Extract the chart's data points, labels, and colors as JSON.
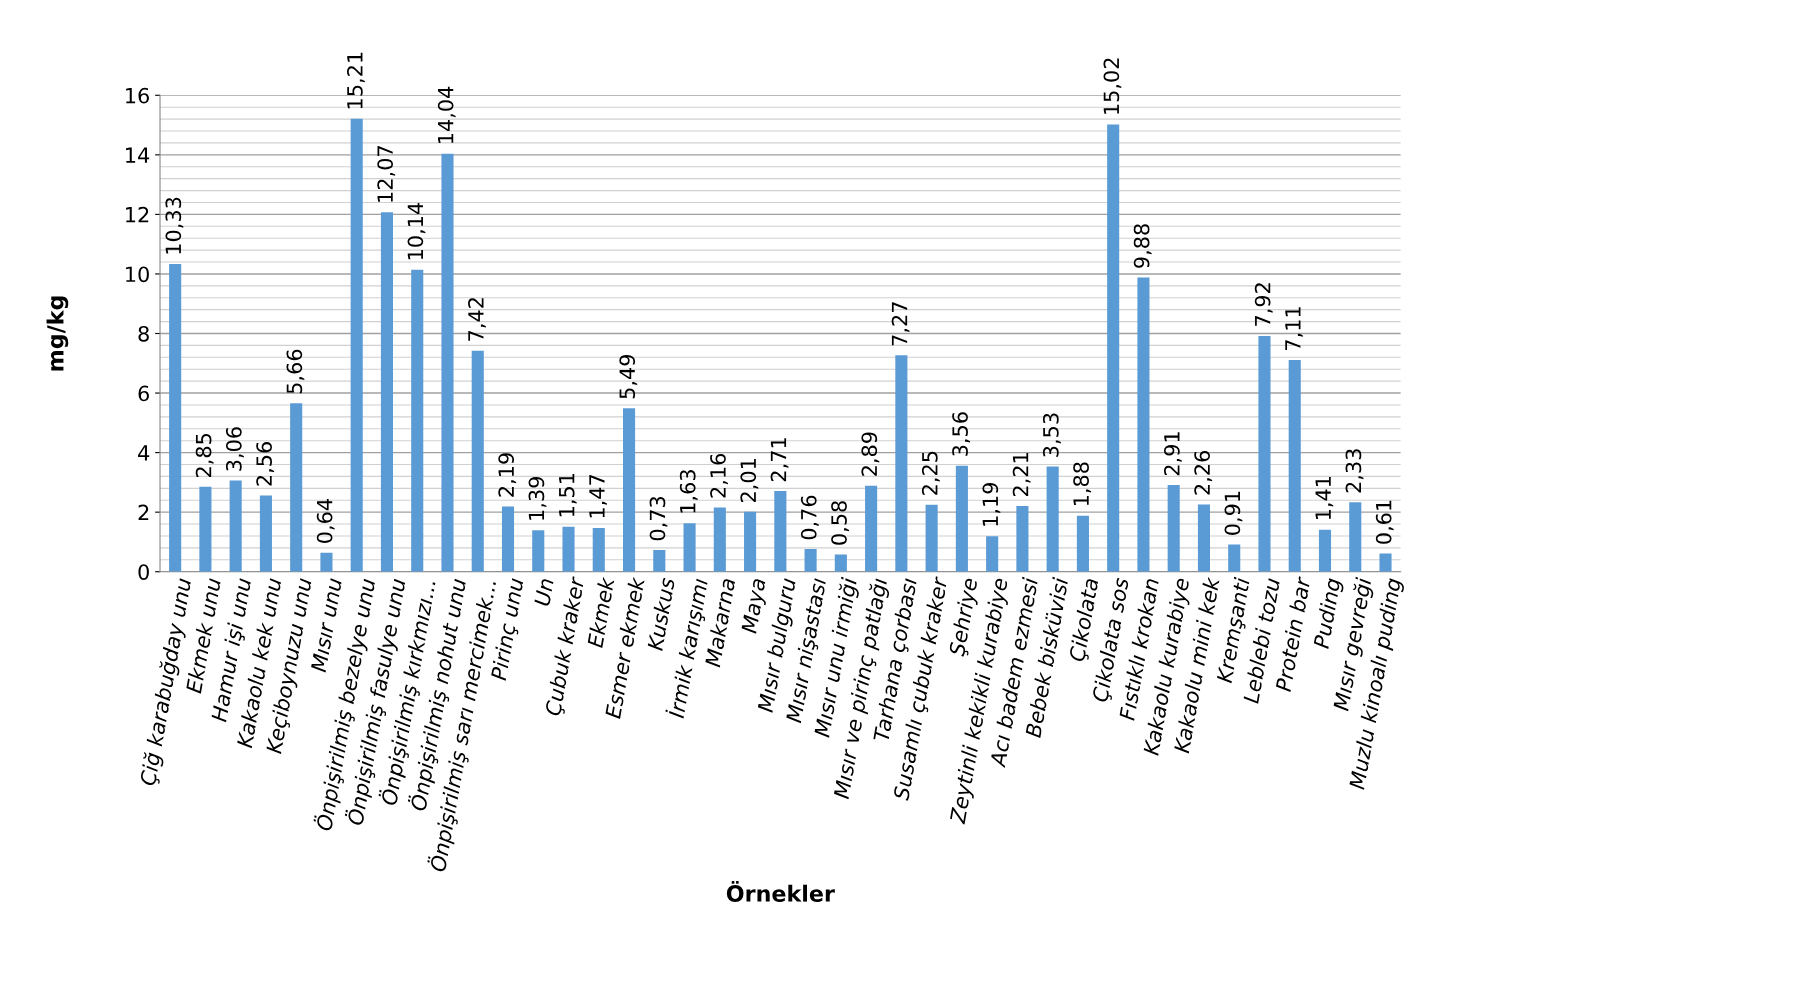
{
  "chart_data": {
    "type": "bar",
    "xlabel": "Örnekler",
    "ylabel": "mg/kg",
    "categories": [
      "Çiğ karabuğday unu",
      "Ekmek unu",
      "Hamur işi unu",
      "Kakaolu kek unu",
      "Keçiboynuzu unu",
      "Mısır unu",
      "Önpişirilmiş bezelye unu",
      "Önpişirilmiş fasulye unu",
      "Önpişirilmiş kırkmızı...",
      "Önpişirilmiş nohut unu",
      "Önpişirilmiş sarı mercimek...",
      "Pirinç unu",
      "Un",
      "Çubuk kraker",
      "Ekmek",
      "Esmer ekmek",
      "Kuskus",
      "İrmik karışımı",
      "Makarna",
      "Maya",
      "Mısır bulguru",
      "Mısır nişastası",
      "Mısır unu irmiği",
      "Mısır ve pirinç patlağı",
      "Tarhana çorbası",
      "Susamlı çubuk kraker",
      "Şehriye",
      "Zeytinli kekikli kurabiye",
      "Acı badem ezmesi",
      "Bebek bisküvisi",
      "Çikolata",
      "Çikolata sos",
      "Fıstıklı krokan",
      "Kakaolu kurabiye",
      "Kakaolu mini kek",
      "Kremşanti",
      "Leblebi tozu",
      "Protein bar",
      "Puding",
      "Mısır gevreği",
      "Muzlu kinoalı puding"
    ],
    "values": [
      10.33,
      2.85,
      3.06,
      2.56,
      5.66,
      0.64,
      15.21,
      12.07,
      10.14,
      14.04,
      7.42,
      2.19,
      1.39,
      1.51,
      1.47,
      5.49,
      0.73,
      1.63,
      2.16,
      2.01,
      2.71,
      0.76,
      0.58,
      2.89,
      7.27,
      2.25,
      3.56,
      1.19,
      2.21,
      3.53,
      1.88,
      15.02,
      9.88,
      2.91,
      2.26,
      0.91,
      7.92,
      7.11,
      1.41,
      2.33,
      0.61
    ],
    "value_labels": [
      "10,33",
      "2,85",
      "3,06",
      "2,56",
      "5,66",
      "0,64",
      "15,21",
      "12,07",
      "10,14",
      "14,04",
      "7,42",
      "2,19",
      "1,39",
      "1,51",
      "1,47",
      "5,49",
      "0,73",
      "1,63",
      "2,16",
      "2,01",
      "2,71",
      "0,76",
      "0,58",
      "2,89",
      "7,27",
      "2,25",
      "3,56",
      "1,19",
      "2,21",
      "3,53",
      "1,88",
      "15,02",
      "9,88",
      "2,91",
      "2,26",
      "0,91",
      "7,92",
      "7,11",
      "1,41",
      "2,33",
      "0,61"
    ],
    "color": "#5b9bd5",
    "ylim": [
      0,
      16
    ],
    "yticks": [
      0,
      2,
      4,
      6,
      8,
      10,
      12,
      14,
      16
    ],
    "grid": "y"
  }
}
